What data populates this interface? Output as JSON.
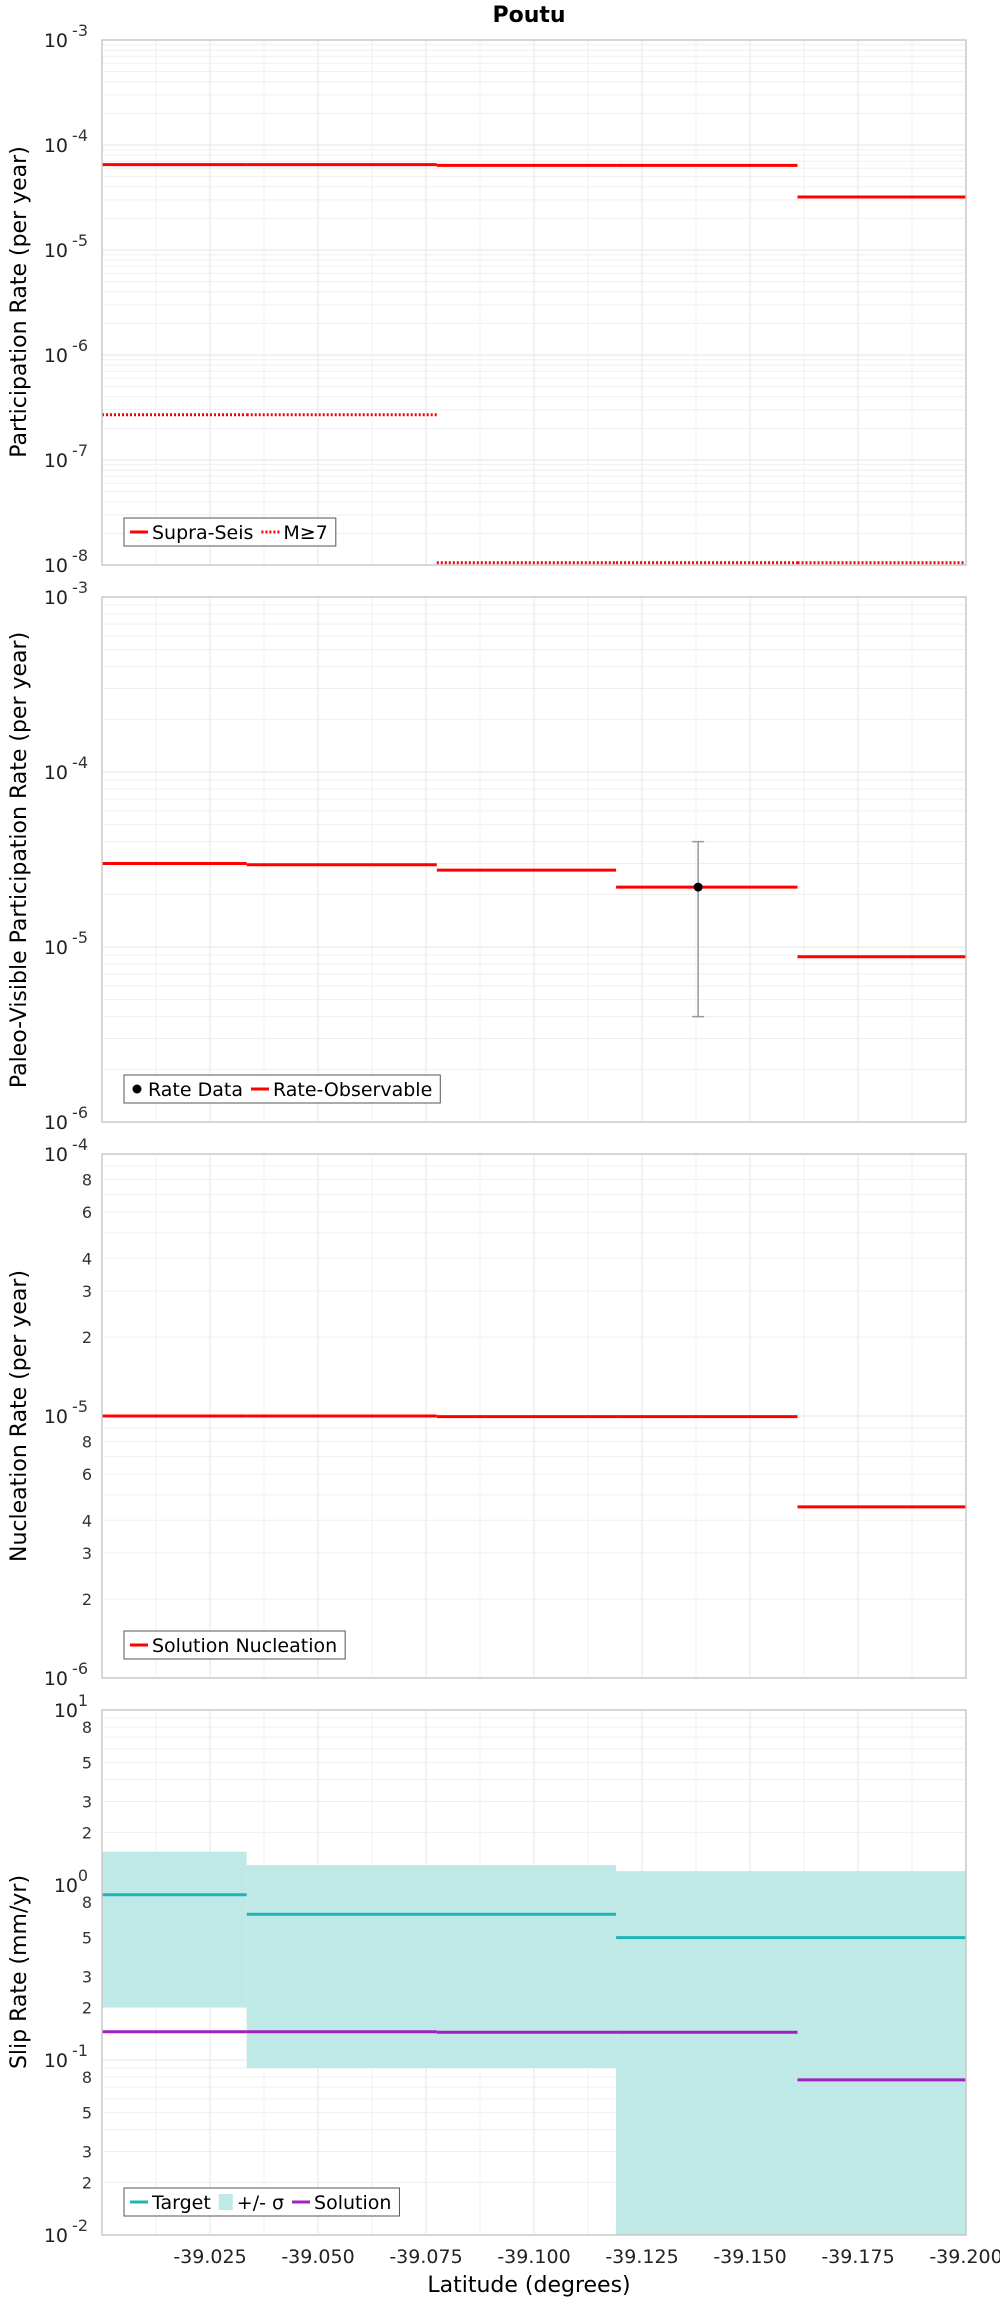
{
  "colors": {
    "red": "#ff0000",
    "teal": "#1fb5b5",
    "band": "#bfe9e6",
    "magenta": "#a020c0",
    "point": "#000000",
    "errbar": "#9a9a9a",
    "grid": "#e6e6e6"
  },
  "chart_data": [
    {
      "type": "line",
      "title": "Poutu",
      "ylabel": "Participation Rate (per year)",
      "yscale": "log",
      "ylim": [
        1e-08,
        0.001
      ],
      "xlim": [
        -39.0,
        -39.2
      ],
      "y_ticks": [
        "10-3",
        "10-4",
        "10-5",
        "10-6",
        "10-7",
        "10-8"
      ],
      "series": [
        {
          "name": "Supra-Seis",
          "style": "solid",
          "color": "#ff0000",
          "segments": [
            {
              "x0": -39.0,
              "x1": -39.0335,
              "y": 6.5e-05
            },
            {
              "x0": -39.0335,
              "x1": -39.0775,
              "y": 6.5e-05
            },
            {
              "x0": -39.0775,
              "x1": -39.119,
              "y": 6.4e-05
            },
            {
              "x0": -39.119,
              "x1": -39.161,
              "y": 6.4e-05
            },
            {
              "x0": -39.161,
              "x1": -39.2,
              "y": 3.2e-05
            }
          ]
        },
        {
          "name": "M≥7",
          "style": "dotted",
          "color": "#ff0000",
          "segments": [
            {
              "x0": -39.0,
              "x1": -39.0335,
              "y": 2.7e-07
            },
            {
              "x0": -39.0335,
              "x1": -39.0775,
              "y": 2.7e-07
            },
            {
              "x0": -39.0775,
              "x1": -39.119,
              "y": 1.05e-08
            },
            {
              "x0": -39.119,
              "x1": -39.161,
              "y": 1.05e-08
            },
            {
              "x0": -39.161,
              "x1": -39.2,
              "y": 1.05e-08
            }
          ]
        }
      ],
      "legend": {
        "placement": "bottom-left",
        "entries": [
          "Supra-Seis",
          "M≥7"
        ]
      }
    },
    {
      "type": "line",
      "ylabel": "Paleo-Visible Participation Rate (per year)",
      "yscale": "log",
      "ylim": [
        1e-06,
        0.001
      ],
      "xlim": [
        -39.0,
        -39.2
      ],
      "y_ticks": [
        "10-3",
        "10-4",
        "10-5",
        "10-6"
      ],
      "series": [
        {
          "name": "Rate-Observable",
          "style": "solid",
          "color": "#ff0000",
          "segments": [
            {
              "x0": -39.0,
              "x1": -39.0335,
              "y": 3e-05
            },
            {
              "x0": -39.0335,
              "x1": -39.0775,
              "y": 2.95e-05
            },
            {
              "x0": -39.0775,
              "x1": -39.119,
              "y": 2.75e-05
            },
            {
              "x0": -39.119,
              "x1": -39.161,
              "y": 2.2e-05
            },
            {
              "x0": -39.161,
              "x1": -39.2,
              "y": 8.8e-06
            }
          ]
        }
      ],
      "points": [
        {
          "name": "Rate Data",
          "x": -39.138,
          "y": 2.2e-05,
          "ylow": 4e-06,
          "yhigh": 4e-05
        }
      ],
      "legend": {
        "placement": "bottom-left",
        "entries": [
          "Rate Data",
          "Rate-Observable"
        ]
      }
    },
    {
      "type": "line",
      "ylabel": "Nucleation Rate (per year)",
      "yscale": "log",
      "ylim": [
        1e-06,
        0.0001
      ],
      "xlim": [
        -39.0,
        -39.2
      ],
      "y_ticks": [
        "10-4",
        "8",
        "6",
        "4",
        "3",
        "2",
        "10-5",
        "8",
        "6",
        "4",
        "3",
        "2",
        "10-6"
      ],
      "series": [
        {
          "name": "Solution Nucleation",
          "style": "solid",
          "color": "#ff0000",
          "segments": [
            {
              "x0": -39.0,
              "x1": -39.0335,
              "y": 1e-05
            },
            {
              "x0": -39.0335,
              "x1": -39.0775,
              "y": 1e-05
            },
            {
              "x0": -39.0775,
              "x1": -39.119,
              "y": 9.95e-06
            },
            {
              "x0": -39.119,
              "x1": -39.161,
              "y": 9.95e-06
            },
            {
              "x0": -39.161,
              "x1": -39.2,
              "y": 4.5e-06
            }
          ]
        }
      ],
      "legend": {
        "placement": "bottom-left",
        "entries": [
          "Solution Nucleation"
        ]
      }
    },
    {
      "type": "line",
      "ylabel": "Slip Rate (mm/yr)",
      "xlabel": "Latitude (degrees)",
      "yscale": "log",
      "ylim": [
        0.01,
        10
      ],
      "xlim": [
        -39.0,
        -39.2
      ],
      "x_ticks": [
        "-39.025",
        "-39.050",
        "-39.075",
        "-39.100",
        "-39.125",
        "-39.150",
        "-39.175",
        "-39.200"
      ],
      "y_ticks": [
        "10-2",
        "2",
        "3",
        "5",
        "8",
        "10-1",
        "2",
        "3",
        "5",
        "8",
        "100",
        "2",
        "3",
        "5",
        "8",
        "101"
      ],
      "band": {
        "name": "+/- σ",
        "segments": [
          {
            "x0": -39.0,
            "x1": -39.0335,
            "lo": 0.2,
            "hi": 1.55
          },
          {
            "x0": -39.0335,
            "x1": -39.119,
            "lo": 0.09,
            "hi": 1.3
          },
          {
            "x0": -39.119,
            "x1": -39.2,
            "lo": 0.01,
            "hi": 1.2
          }
        ]
      },
      "series": [
        {
          "name": "Target",
          "style": "solid",
          "color": "#1fb5b5",
          "segments": [
            {
              "x0": -39.0,
              "x1": -39.0335,
              "y": 0.88
            },
            {
              "x0": -39.0335,
              "x1": -39.119,
              "y": 0.68
            },
            {
              "x0": -39.119,
              "x1": -39.2,
              "y": 0.5
            }
          ]
        },
        {
          "name": "Solution",
          "style": "solid",
          "color": "#a020c0",
          "segments": [
            {
              "x0": -39.0,
              "x1": -39.0335,
              "y": 0.145
            },
            {
              "x0": -39.0335,
              "x1": -39.0775,
              "y": 0.145
            },
            {
              "x0": -39.0775,
              "x1": -39.119,
              "y": 0.144
            },
            {
              "x0": -39.119,
              "x1": -39.161,
              "y": 0.144
            },
            {
              "x0": -39.161,
              "x1": -39.2,
              "y": 0.077
            }
          ]
        }
      ],
      "legend": {
        "placement": "bottom-left",
        "entries": [
          "Target",
          "+/- σ",
          "Solution"
        ]
      }
    }
  ]
}
